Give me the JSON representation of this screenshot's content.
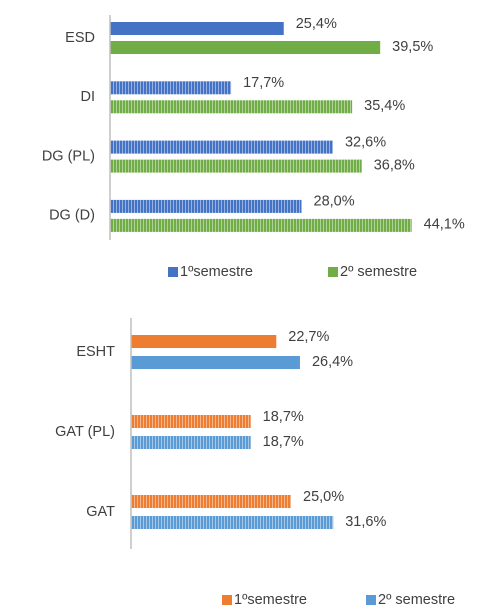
{
  "chart_data": [
    {
      "type": "barh",
      "categories": [
        "ESD",
        "DI",
        "DG (PL)",
        "DG (D)"
      ],
      "xlim": [
        0,
        50
      ],
      "series": [
        {
          "name": "1ºsemestre",
          "color": "#4472c4",
          "values": [
            25.4,
            17.7,
            32.6,
            28.0
          ],
          "value_labels": [
            "25,4%",
            "17,7%",
            "32,6%",
            "28,0%"
          ]
        },
        {
          "name": "2º semestre",
          "color": "#70ad47",
          "values": [
            39.5,
            35.4,
            36.8,
            44.1
          ],
          "value_labels": [
            "39,5%",
            "35,4%",
            "36,8%",
            "44,1%"
          ]
        }
      ]
    },
    {
      "type": "barh",
      "categories": [
        "ESHT",
        "GAT (PL)",
        "GAT"
      ],
      "xlim": [
        0,
        50
      ],
      "series": [
        {
          "name": "1ºsemestre",
          "color": "#ed7d31",
          "values": [
            22.7,
            18.7,
            25.0
          ],
          "value_labels": [
            "22,7%",
            "18,7%",
            "25,0%"
          ]
        },
        {
          "name": "2º semestre",
          "color": "#5b9bd5",
          "values": [
            26.4,
            18.7,
            31.6
          ],
          "value_labels": [
            "26,4%",
            "18,7%",
            "31,6%"
          ]
        }
      ]
    }
  ]
}
